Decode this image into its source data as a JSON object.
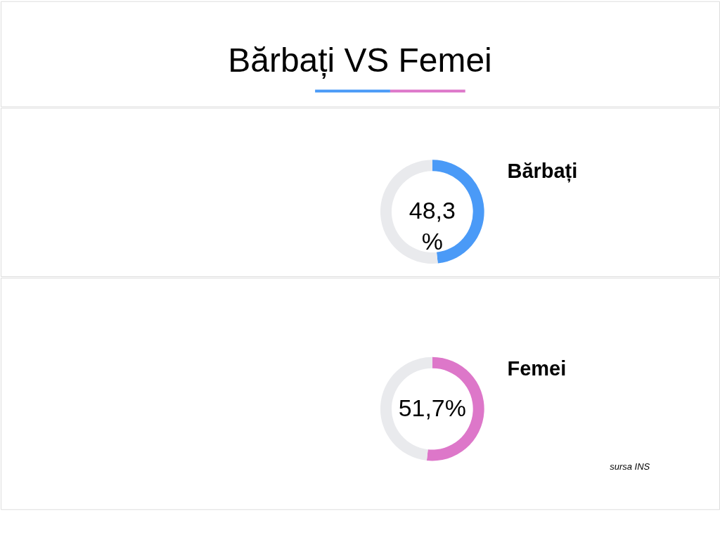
{
  "chart_data": [
    {
      "type": "other",
      "title": "Bărbați VS Femei"
    },
    {
      "type": "donut",
      "title": "Bărbați",
      "categories": [
        null,
        null
      ],
      "values": [
        48.3,
        51.7
      ],
      "colors": [
        "#4a9af7",
        "#e9eaed"
      ],
      "value_labels": [
        "48,3 %",
        null
      ]
    },
    {
      "type": "donut",
      "title": "Femei",
      "categories": [
        null,
        null
      ],
      "values": [
        51.7,
        48.3
      ],
      "colors": [
        "#dd77c9",
        "#e9eaed"
      ],
      "value_labels": [
        "51,7%",
        null
      ],
      "annotations": [
        "sursa INS"
      ]
    }
  ]
}
